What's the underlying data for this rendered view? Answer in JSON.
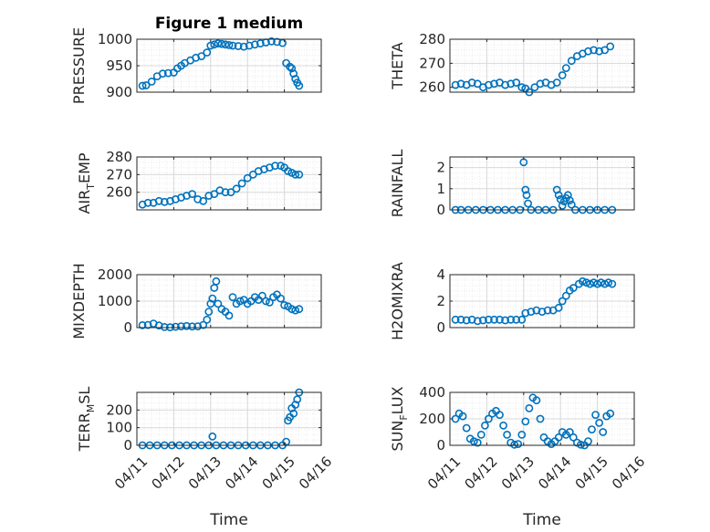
{
  "figure_title": "Figure 1 medium",
  "x_label": "Time",
  "x_ticks": [
    "04/11",
    "04/12",
    "04/13",
    "04/14",
    "04/15",
    "04/16"
  ],
  "colors": {
    "marker": "#0072BD",
    "axis": "#262626",
    "grid": "#d9d9d9",
    "grid_minor": "#ececec"
  },
  "chart_data": [
    {
      "type": "scatter",
      "id": "pressure",
      "ylabel": "PRESSURE",
      "ylim": [
        900,
        1000
      ],
      "yticks": [
        900,
        950,
        1000
      ],
      "yticklabels": [
        "900",
        "950",
        "1000"
      ],
      "xlim": [
        0,
        5
      ],
      "grid": true,
      "x": [
        0.15,
        0.25,
        0.4,
        0.55,
        0.7,
        0.85,
        1.0,
        1.1,
        1.2,
        1.3,
        1.45,
        1.6,
        1.75,
        1.9,
        2.0,
        2.1,
        2.2,
        2.3,
        2.4,
        2.5,
        2.6,
        2.75,
        2.9,
        3.05,
        3.2,
        3.35,
        3.5,
        3.65,
        3.8,
        3.95,
        4.05,
        4.15,
        4.2,
        4.25,
        4.3,
        4.35,
        4.4
      ],
      "y": [
        912,
        913,
        920,
        930,
        935,
        936,
        937,
        945,
        950,
        955,
        960,
        965,
        968,
        975,
        988,
        990,
        992,
        991,
        990,
        989,
        988,
        987,
        986,
        988,
        990,
        992,
        994,
        996,
        995,
        993,
        955,
        948,
        945,
        935,
        925,
        918,
        912
      ]
    },
    {
      "type": "scatter",
      "id": "theta",
      "ylabel": "THETA",
      "ylim": [
        258,
        280
      ],
      "yticks": [
        260,
        270,
        280
      ],
      "yticklabels": [
        "260",
        "270",
        "280"
      ],
      "xlim": [
        0,
        5
      ],
      "grid": true,
      "x": [
        0.15,
        0.3,
        0.45,
        0.6,
        0.75,
        0.9,
        1.05,
        1.2,
        1.35,
        1.5,
        1.65,
        1.8,
        1.95,
        2.05,
        2.15,
        2.3,
        2.45,
        2.6,
        2.75,
        2.9,
        3.05,
        3.15,
        3.3,
        3.45,
        3.6,
        3.75,
        3.9,
        4.05,
        4.2,
        4.35
      ],
      "y": [
        261,
        261.5,
        261,
        262,
        261.5,
        260,
        261,
        261.5,
        262,
        261,
        261.5,
        262,
        260,
        259.5,
        258,
        260,
        261.5,
        262,
        261,
        262,
        265,
        268,
        271,
        273,
        274,
        275,
        275.5,
        275,
        275.5,
        277
      ]
    },
    {
      "type": "scatter",
      "id": "air_temp",
      "ylabel": "AIR_TEMP",
      "ylim": [
        250,
        280
      ],
      "yticks": [
        260,
        270,
        280
      ],
      "yticklabels": [
        "260",
        "270",
        "280"
      ],
      "xlim": [
        0,
        5
      ],
      "grid": true,
      "x": [
        0.15,
        0.3,
        0.45,
        0.6,
        0.75,
        0.9,
        1.05,
        1.2,
        1.35,
        1.5,
        1.65,
        1.8,
        1.95,
        2.1,
        2.25,
        2.4,
        2.55,
        2.7,
        2.85,
        3.0,
        3.15,
        3.3,
        3.45,
        3.6,
        3.75,
        3.9,
        4.0,
        4.1,
        4.2,
        4.3,
        4.4
      ],
      "y": [
        253,
        254,
        254,
        255,
        254.5,
        255,
        256,
        257,
        258,
        259,
        256,
        255,
        258,
        259,
        261,
        260,
        260,
        262,
        265,
        268,
        270,
        272,
        273,
        274,
        275,
        275,
        274,
        272,
        271,
        270,
        270
      ]
    },
    {
      "type": "scatter",
      "id": "rainfall",
      "ylabel": "RAINFALL",
      "ylim": [
        0,
        2.5
      ],
      "yticks": [
        0,
        1,
        2
      ],
      "yticklabels": [
        "0",
        "1",
        "2"
      ],
      "xlim": [
        0,
        5
      ],
      "grid": true,
      "x": [
        0.15,
        0.3,
        0.5,
        0.7,
        0.9,
        1.1,
        1.3,
        1.5,
        1.7,
        1.9,
        2.0,
        2.05,
        2.08,
        2.12,
        2.2,
        2.4,
        2.6,
        2.8,
        2.9,
        2.95,
        3.0,
        3.05,
        3.1,
        3.15,
        3.2,
        3.25,
        3.3,
        3.4,
        3.6,
        3.8,
        4.0,
        4.2,
        4.4
      ],
      "y": [
        0,
        0,
        0,
        0,
        0,
        0,
        0,
        0,
        0,
        0,
        2.25,
        0.95,
        0.7,
        0.3,
        0,
        0,
        0,
        0,
        0.95,
        0.7,
        0.5,
        0.2,
        0.4,
        0.55,
        0.7,
        0.45,
        0.25,
        0,
        0,
        0,
        0,
        0,
        0
      ]
    },
    {
      "type": "scatter",
      "id": "mixdepth",
      "ylabel": "MIXDEPTH",
      "ylim": [
        0,
        2000
      ],
      "yticks": [
        0,
        1000,
        2000
      ],
      "yticklabels": [
        "0",
        "1000",
        "2000"
      ],
      "xlim": [
        0,
        5
      ],
      "grid": true,
      "x": [
        0.15,
        0.3,
        0.45,
        0.6,
        0.75,
        0.9,
        1.05,
        1.2,
        1.35,
        1.5,
        1.65,
        1.8,
        1.9,
        1.95,
        2.0,
        2.05,
        2.1,
        2.15,
        2.2,
        2.3,
        2.4,
        2.5,
        2.6,
        2.7,
        2.8,
        2.9,
        3.0,
        3.1,
        3.2,
        3.3,
        3.4,
        3.5,
        3.6,
        3.7,
        3.8,
        3.9,
        4.0,
        4.1,
        4.2,
        4.3,
        4.4
      ],
      "y": [
        90,
        100,
        150,
        80,
        20,
        10,
        30,
        50,
        60,
        40,
        50,
        100,
        300,
        600,
        900,
        1100,
        1500,
        1750,
        900,
        700,
        600,
        450,
        1150,
        900,
        1000,
        1050,
        900,
        1000,
        1150,
        1050,
        1200,
        1000,
        950,
        1150,
        1250,
        1100,
        850,
        800,
        700,
        650,
        700
      ]
    },
    {
      "type": "scatter",
      "id": "h2omixra",
      "ylabel": "H2OMIXRA",
      "ylim": [
        0,
        4
      ],
      "yticks": [
        0,
        2,
        4
      ],
      "yticklabels": [
        "0",
        "2",
        "4"
      ],
      "xlim": [
        0,
        5
      ],
      "grid": true,
      "x": [
        0.15,
        0.3,
        0.45,
        0.6,
        0.75,
        0.9,
        1.05,
        1.2,
        1.35,
        1.5,
        1.65,
        1.8,
        1.95,
        2.05,
        2.2,
        2.35,
        2.5,
        2.65,
        2.8,
        2.95,
        3.05,
        3.15,
        3.25,
        3.35,
        3.5,
        3.6,
        3.7,
        3.8,
        3.9,
        4.0,
        4.1,
        4.2,
        4.3,
        4.4
      ],
      "y": [
        0.6,
        0.6,
        0.55,
        0.6,
        0.5,
        0.55,
        0.6,
        0.6,
        0.6,
        0.55,
        0.6,
        0.6,
        0.6,
        1.1,
        1.2,
        1.3,
        1.2,
        1.3,
        1.3,
        1.5,
        2.0,
        2.4,
        2.8,
        3.0,
        3.3,
        3.5,
        3.4,
        3.3,
        3.4,
        3.3,
        3.4,
        3.3,
        3.4,
        3.3
      ]
    },
    {
      "type": "scatter",
      "id": "terr_msl",
      "ylabel": "TERR_MSL",
      "ylim": [
        0,
        300
      ],
      "yticks": [
        0,
        100,
        200
      ],
      "yticklabels": [
        "0",
        "100",
        "200"
      ],
      "xlim": [
        0,
        5
      ],
      "grid": true,
      "x": [
        0.15,
        0.35,
        0.55,
        0.75,
        0.95,
        1.15,
        1.35,
        1.55,
        1.75,
        1.95,
        2.05,
        2.15,
        2.35,
        2.55,
        2.75,
        2.95,
        3.15,
        3.35,
        3.55,
        3.75,
        3.95,
        4.05,
        4.1,
        4.15,
        4.2,
        4.25,
        4.3,
        4.35,
        4.4
      ],
      "y": [
        0,
        0,
        0,
        0,
        0,
        0,
        0,
        0,
        0,
        0,
        50,
        0,
        0,
        0,
        0,
        0,
        0,
        0,
        0,
        0,
        0,
        20,
        140,
        160,
        210,
        180,
        230,
        260,
        300
      ]
    },
    {
      "type": "scatter",
      "id": "sun_flux",
      "ylabel": "SUN_FLUX",
      "ylim": [
        0,
        400
      ],
      "yticks": [
        0,
        200,
        400
      ],
      "yticklabels": [
        "0",
        "200",
        "400"
      ],
      "xlim": [
        0,
        5
      ],
      "grid": true,
      "x": [
        0.15,
        0.25,
        0.35,
        0.45,
        0.55,
        0.65,
        0.75,
        0.85,
        0.95,
        1.05,
        1.15,
        1.25,
        1.35,
        1.45,
        1.55,
        1.65,
        1.75,
        1.85,
        1.95,
        2.05,
        2.15,
        2.25,
        2.35,
        2.45,
        2.55,
        2.65,
        2.75,
        2.85,
        2.95,
        3.05,
        3.15,
        3.25,
        3.35,
        3.45,
        3.55,
        3.65,
        3.75,
        3.85,
        3.95,
        4.05,
        4.15,
        4.25,
        4.35
      ],
      "y": [
        200,
        240,
        220,
        130,
        50,
        30,
        20,
        80,
        150,
        200,
        240,
        260,
        230,
        150,
        80,
        20,
        5,
        10,
        80,
        180,
        280,
        360,
        340,
        200,
        60,
        30,
        10,
        30,
        60,
        100,
        80,
        100,
        60,
        20,
        5,
        0,
        30,
        120,
        230,
        170,
        100,
        220,
        240
      ]
    }
  ]
}
